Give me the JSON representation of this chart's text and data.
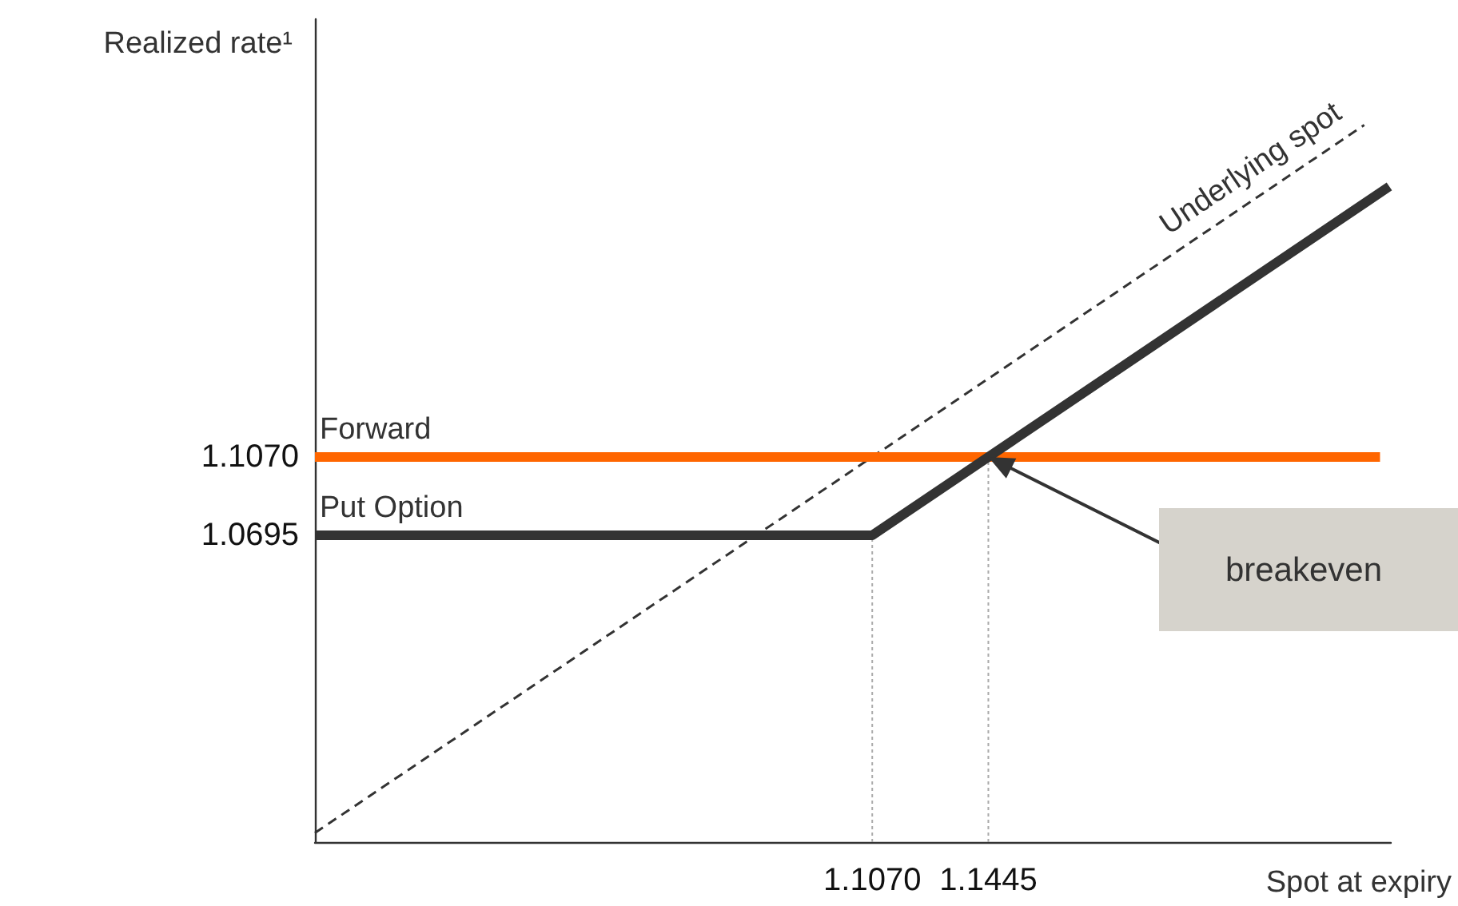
{
  "chart_data": {
    "type": "line",
    "xlabel": "Spot at expiry",
    "ylabel": "Realized rate¹",
    "xlim": [
      0.927,
      1.2745
    ],
    "ylim": [
      0.9226,
      1.3166
    ],
    "xticks": [
      {
        "value": 1.107,
        "label": "1.1070"
      },
      {
        "value": 1.1445,
        "label": "1.1445"
      }
    ],
    "yticks": [
      {
        "value": 1.0695,
        "label": "1.0695"
      },
      {
        "value": 1.107,
        "label": "1.1070"
      }
    ],
    "grid": false,
    "legend": false,
    "marker": "none",
    "series": [
      {
        "name": "Underlying spot",
        "color": "#333333",
        "line_style": "dashed",
        "x": [
          0.927,
          1.2659
        ],
        "values": [
          0.927,
          1.2659
        ]
      },
      {
        "name": "Forward",
        "color": "#ff6600",
        "line_style": "solid",
        "x": [
          0.927,
          1.271
        ],
        "values": [
          1.107,
          1.107
        ]
      },
      {
        "name": "Put Option",
        "color": "#333333",
        "line_style": "solid",
        "x": [
          0.927,
          1.107,
          1.274
        ],
        "values": [
          1.0695,
          1.0695,
          1.2365
        ]
      },
      {
        "color": "#aaaaaa",
        "line_style": "dotted",
        "x": [
          1.107,
          1.107
        ],
        "values": [
          0.9226,
          1.0695
        ]
      },
      {
        "color": "#aaaaaa",
        "line_style": "dotted",
        "x": [
          1.1445,
          1.1445
        ],
        "values": [
          0.9226,
          1.107
        ]
      }
    ],
    "annotations": [
      "breakeven"
    ]
  }
}
